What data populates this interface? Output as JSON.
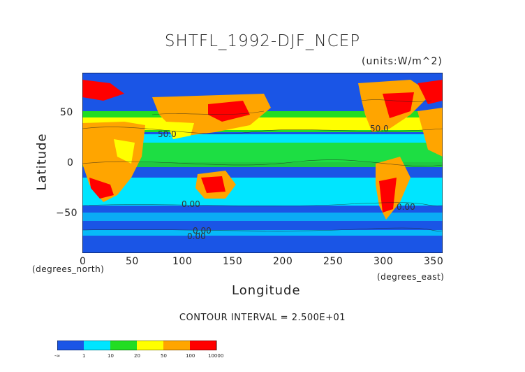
{
  "title": "SHTFL_1992-DJF_NCEP",
  "units": "(units:W/m^2)",
  "axes": {
    "ylabel": "Latitude",
    "xlabel": "Longitude",
    "ylabel_note": "(degrees_north)",
    "xlabel_note": "(degrees_east)",
    "yticks": [
      "50",
      "0",
      "−50"
    ],
    "xticks": [
      "0",
      "50",
      "100",
      "150",
      "200",
      "250",
      "300",
      "350"
    ]
  },
  "contour_interval": "CONTOUR INTERVAL = 2.500E+01",
  "contour_labels": [
    "50.0",
    "50.0",
    "0.00",
    "0.00",
    "0.00",
    "0.00"
  ],
  "colorbar": {
    "labels": [
      "-∞",
      "1",
      "10",
      "20",
      "50",
      "100",
      "10000"
    ],
    "colors": [
      "#1a55e6",
      "#00e5ff",
      "#22dd22",
      "#ffff00",
      "#ffa500",
      "#ff0000"
    ]
  },
  "map_colors": {
    "ocean_deep": "#1a55e6",
    "cyan": "#00e5ff",
    "green": "#22dd22",
    "yellow": "#ffff00",
    "orange": "#ffa500",
    "red": "#ff0000"
  },
  "chart_data": {
    "type": "heatmap",
    "xlim": [
      0,
      360
    ],
    "ylim": [
      -90,
      90
    ],
    "x_ticks": [
      0,
      50,
      100,
      150,
      200,
      250,
      300,
      350
    ],
    "y_ticks": [
      -50,
      0,
      50
    ],
    "levels": [
      "-∞",
      1,
      10,
      20,
      50,
      100,
      10000
    ]
  }
}
